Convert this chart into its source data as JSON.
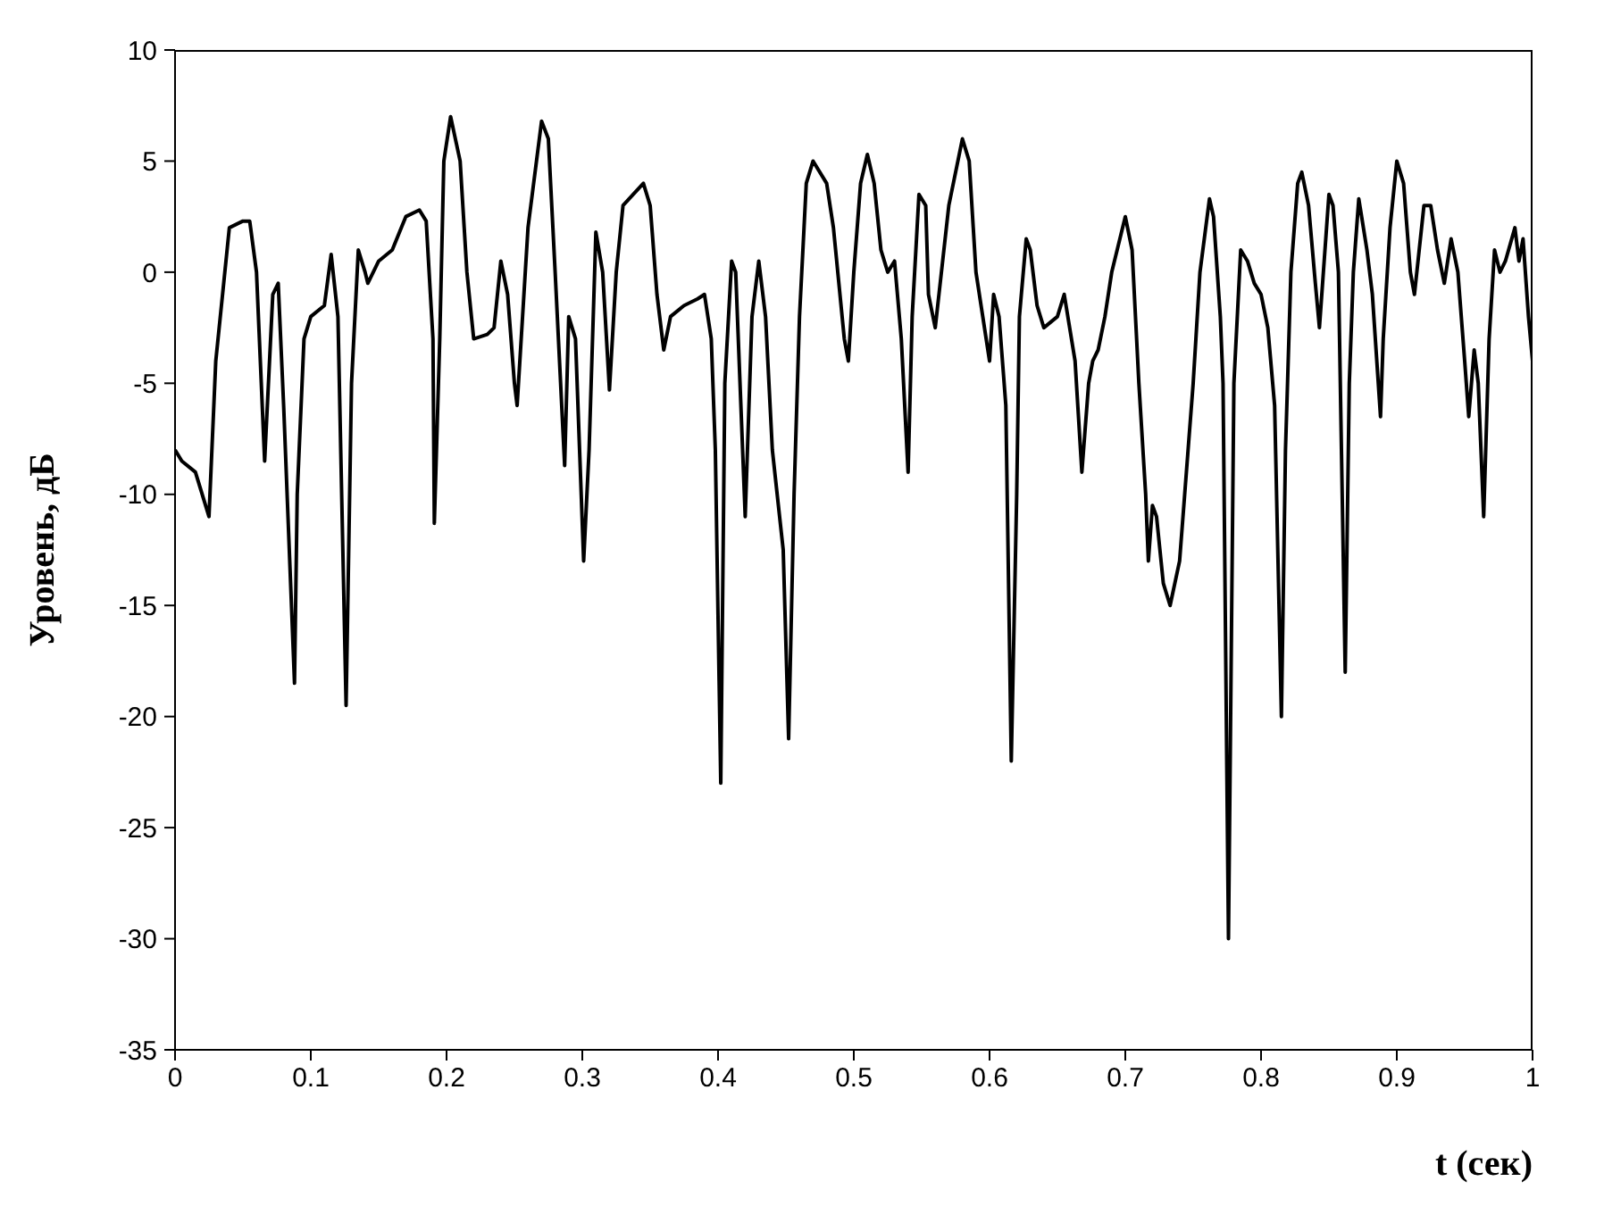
{
  "chart_data": {
    "type": "line",
    "xlabel": "t (сек)",
    "ylabel": "Уровень, дБ",
    "xlim": [
      0,
      1
    ],
    "ylim": [
      -35,
      10
    ],
    "xticks": [
      0,
      0.1,
      0.2,
      0.3,
      0.4,
      0.5,
      0.6,
      0.7,
      0.8,
      0.9,
      1
    ],
    "yticks": [
      -35,
      -30,
      -25,
      -20,
      -15,
      -10,
      -5,
      0,
      5,
      10
    ],
    "grid": false,
    "legend": false,
    "marker": "none",
    "line_style": "solid",
    "series": [
      {
        "color": "#000000",
        "x": [
          0,
          0.005,
          0.015,
          0.025,
          0.03,
          0.04,
          0.05,
          0.055,
          0.06,
          0.066,
          0.072,
          0.076,
          0.08,
          0.088,
          0.09,
          0.095,
          0.1,
          0.11,
          0.115,
          0.12,
          0.126,
          0.13,
          0.135,
          0.14,
          0.142,
          0.15,
          0.16,
          0.17,
          0.18,
          0.185,
          0.19,
          0.191,
          0.195,
          0.198,
          0.203,
          0.21,
          0.215,
          0.22,
          0.23,
          0.235,
          0.24,
          0.245,
          0.25,
          0.252,
          0.26,
          0.27,
          0.275,
          0.28,
          0.287,
          0.29,
          0.295,
          0.301,
          0.305,
          0.31,
          0.315,
          0.32,
          0.325,
          0.33,
          0.345,
          0.35,
          0.355,
          0.36,
          0.365,
          0.375,
          0.385,
          0.39,
          0.395,
          0.398,
          0.402,
          0.405,
          0.41,
          0.413,
          0.42,
          0.425,
          0.43,
          0.435,
          0.44,
          0.448,
          0.452,
          0.456,
          0.46,
          0.465,
          0.47,
          0.48,
          0.485,
          0.493,
          0.496,
          0.5,
          0.505,
          0.51,
          0.515,
          0.52,
          0.525,
          0.53,
          0.535,
          0.54,
          0.543,
          0.548,
          0.553,
          0.555,
          0.56,
          0.57,
          0.58,
          0.585,
          0.59,
          0.595,
          0.6,
          0.603,
          0.607,
          0.612,
          0.616,
          0.62,
          0.622,
          0.627,
          0.63,
          0.635,
          0.64,
          0.65,
          0.655,
          0.663,
          0.668,
          0.673,
          0.676,
          0.68,
          0.685,
          0.69,
          0.7,
          0.705,
          0.71,
          0.715,
          0.717,
          0.72,
          0.723,
          0.728,
          0.733,
          0.74,
          0.745,
          0.75,
          0.755,
          0.762,
          0.765,
          0.77,
          0.772,
          0.776,
          0.78,
          0.785,
          0.79,
          0.795,
          0.8,
          0.805,
          0.81,
          0.815,
          0.818,
          0.822,
          0.827,
          0.83,
          0.835,
          0.84,
          0.843,
          0.85,
          0.853,
          0.857,
          0.862,
          0.865,
          0.868,
          0.872,
          0.878,
          0.882,
          0.888,
          0.89,
          0.895,
          0.9,
          0.905,
          0.91,
          0.913,
          0.92,
          0.925,
          0.93,
          0.935,
          0.94,
          0.945,
          0.95,
          0.953,
          0.957,
          0.96,
          0.964,
          0.968,
          0.972,
          0.976,
          0.98,
          0.987,
          0.99,
          0.993,
          0.997,
          1
        ],
        "values": [
          -8,
          -8.5,
          -9,
          -11,
          -4,
          2,
          2.3,
          2.3,
          0,
          -8.5,
          -1,
          -0.5,
          -6,
          -18.5,
          -10,
          -3,
          -2,
          -1.5,
          0.8,
          -2,
          -19.5,
          -5,
          1,
          0,
          -0.5,
          0.5,
          1,
          2.5,
          2.8,
          2.3,
          -3,
          -11.3,
          -3,
          5,
          7,
          5,
          0,
          -3,
          -2.8,
          -2.5,
          0.5,
          -1,
          -5,
          -6,
          2,
          6.8,
          6,
          0,
          -8.7,
          -2,
          -3,
          -13,
          -8,
          1.8,
          0,
          -5.3,
          0,
          3,
          4,
          3,
          -1,
          -3.5,
          -2,
          -1.5,
          -1.2,
          -1,
          -3,
          -8,
          -23,
          -5,
          0.5,
          0,
          -11,
          -2,
          0.5,
          -2,
          -8,
          -12.5,
          -21,
          -10,
          -2,
          4,
          5,
          4,
          2,
          -3,
          -4,
          0,
          4,
          5.3,
          4,
          1,
          0,
          0.5,
          -3,
          -9,
          -2,
          3.5,
          3,
          -1,
          -2.5,
          3,
          6,
          5,
          0,
          -2,
          -4,
          -1,
          -2,
          -6,
          -22,
          -10,
          -2,
          1.5,
          1,
          -1.5,
          -2.5,
          -2,
          -1,
          -4,
          -9,
          -5,
          -4,
          -3.5,
          -2,
          0,
          2.5,
          1,
          -5,
          -10,
          -13,
          -10.5,
          -11,
          -14,
          -15,
          -13,
          -9,
          -5,
          0,
          3.3,
          2.5,
          -2,
          -5,
          -30,
          -5,
          1,
          0.5,
          -0.5,
          -1,
          -2.5,
          -6,
          -20,
          -8,
          0,
          4,
          4.5,
          3,
          -0.5,
          -2.5,
          3.5,
          3,
          0,
          -18,
          -5,
          0,
          3.3,
          1,
          -1,
          -6.5,
          -3,
          2,
          5,
          4,
          0,
          -1,
          3,
          3,
          1,
          -0.5,
          1.5,
          0,
          -4,
          -6.5,
          -3.5,
          -5,
          -11,
          -3,
          1,
          0,
          0.5,
          2,
          0.5,
          1.5,
          -2,
          -4
        ]
      }
    ]
  }
}
